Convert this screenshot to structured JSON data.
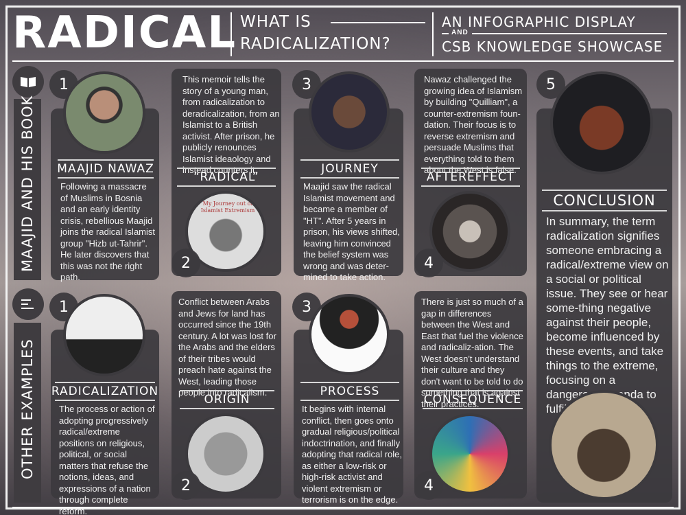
{
  "header": {
    "title": "RADICAL",
    "question_line1": "WHAT IS",
    "question_line2": "RADICALIZATION?",
    "right_line1": "AN INFOGRAPHIC DISPLAY",
    "right_and": "AND",
    "right_line2": "CSB KNOWLEDGE SHOWCASE"
  },
  "sections": {
    "top_label": "MAAJID AND HIS BOOK",
    "top_icon": "book-icon",
    "bottom_label": "OTHER EXAMPLES",
    "bottom_icon": "list-icon"
  },
  "top": {
    "c1": {
      "num": "1",
      "title": "MAAJID NAWAZ",
      "text": "Following a massacre of Muslims in Bosnia and an early identity crisis, rebellious Maajid joins the radical Islamist group \"Hizb ut-Tahrir\". He later discovers that this was not the right path."
    },
    "c2": {
      "num": "2",
      "title": "“RADICAL”",
      "text": "This memoir tells the story of a young man, from radicalization to deradicalization, from an Islamist to a British activist. After prison, he publicly renounces Islamist ideaology and instead counters it.",
      "cover_text": "My Journey out of Islamist Extremism"
    },
    "c3": {
      "num": "3",
      "title": "JOURNEY",
      "text": "Maajid saw the radical Islamist movement and became a member of \"HT\". After 5 years in prison, his views shifted, leaving him convinced the belief system was wrong and was deter-mined to take action."
    },
    "c4": {
      "num": "4",
      "title": "AFTEREFFECT",
      "text": "Nawaz challenged the growing idea of Islamism by building \"Quilliam\", a counter-extremism foun-dation. Their focus is to reverse extremism and persuade Muslims that everything told to them about the West is false."
    }
  },
  "bottom": {
    "c1": {
      "num": "1",
      "title": "RADICALIZATION",
      "text": "The process or action of adopting progressively radical/extreme positions on religious, political, or social matters that refuse the notions, ideas, and expressions of a nation through complete reform."
    },
    "c2": {
      "num": "2",
      "title": "ORIGIN",
      "text": "Conflict between Arabs and Jews for land has occurred since the 19th century. A lot was lost for the Arabs and the elders of their tribes would preach hate against the West, leading those people into radicalism."
    },
    "c3": {
      "num": "3",
      "title": "PROCESS",
      "text": "It begins with internal conflict, then goes onto gradual religious/political indoctrination, and finally adopting that radical role, as either a low-risk or high-risk activist and violent extremism or terrorism is on the edge."
    },
    "c4": {
      "num": "4",
      "title": "CONSEQUENCE",
      "text": "There is just so much of a gap in differences between the West and East that fuel the violence and radicaliz-ation. The West doesn't understand their culture and they don't want to be told to do something that is against their practices."
    }
  },
  "conclusion": {
    "num": "5",
    "title": "CONCLUSION",
    "text": "In summary, the term radicalization signifies someone embracing a radical/extreme view on a social or political issue. They see or hear some-thing negative against their people, become influenced by these events, and take things to the extreme, focusing on a dangerous agenda to fulfill their activism."
  }
}
